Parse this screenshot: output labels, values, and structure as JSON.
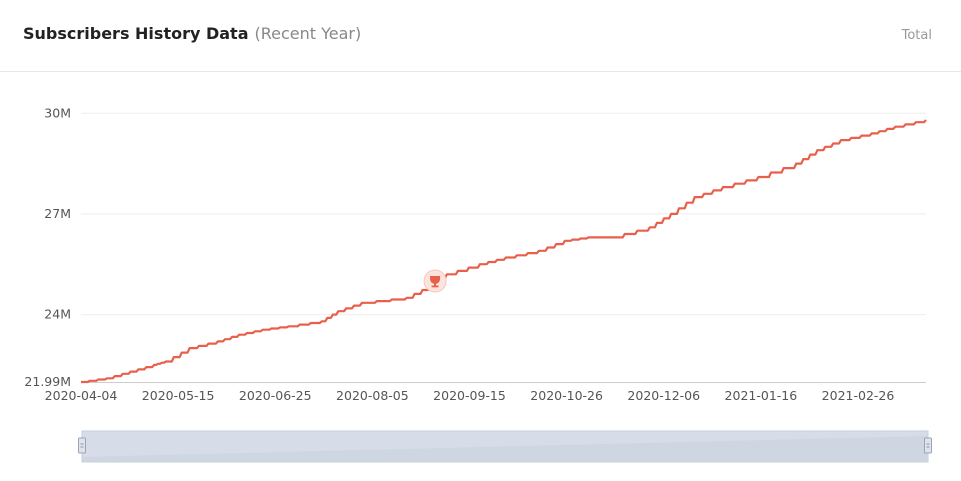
{
  "header": {
    "title": "Subscribers History Data",
    "subtitle": "(Recent Year)",
    "total_label": "Total"
  },
  "colors": {
    "line": "#e8604c",
    "grid": "#eeeeee",
    "axis": "#cccccc",
    "navigator_fill": "#d6dde8"
  },
  "chart_data": {
    "type": "line",
    "title": "Subscribers History Data",
    "x_start": "2020-04-04",
    "x_end": "2021-03-28",
    "xlabel": "",
    "ylabel": "",
    "y_ticks": [
      {
        "label": "21.99M",
        "value": 21.99
      },
      {
        "label": "24M",
        "value": 24
      },
      {
        "label": "27M",
        "value": 27
      },
      {
        "label": "30M",
        "value": 30
      }
    ],
    "x_ticks": [
      "2020-04-04",
      "2020-05-15",
      "2020-06-25",
      "2020-08-05",
      "2020-09-15",
      "2020-10-26",
      "2020-12-06",
      "2021-01-16",
      "2021-02-26"
    ],
    "ylim": [
      21.99,
      31.2
    ],
    "grid": "horizontal",
    "series": [
      {
        "points": [
          [
            "2020-04-04",
            21.99
          ],
          [
            "2020-04-15",
            22.1
          ],
          [
            "2020-04-25",
            22.3
          ],
          [
            "2020-05-05",
            22.5
          ],
          [
            "2020-05-10",
            22.6
          ],
          [
            "2020-05-20",
            23.0
          ],
          [
            "2020-06-01",
            23.2
          ],
          [
            "2020-06-10",
            23.4
          ],
          [
            "2020-06-20",
            23.55
          ],
          [
            "2020-07-01",
            23.65
          ],
          [
            "2020-07-15",
            23.8
          ],
          [
            "2020-07-22",
            24.1
          ],
          [
            "2020-08-01",
            24.35
          ],
          [
            "2020-08-20",
            24.5
          ],
          [
            "2020-08-30",
            24.85
          ],
          [
            "2020-09-06",
            25.2
          ],
          [
            "2020-09-20",
            25.5
          ],
          [
            "2020-10-01",
            25.7
          ],
          [
            "2020-10-15",
            25.9
          ],
          [
            "2020-10-26",
            26.2
          ],
          [
            "2020-11-05",
            26.3
          ],
          [
            "2020-11-15",
            26.3
          ],
          [
            "2020-12-01",
            26.6
          ],
          [
            "2020-12-10",
            27.0
          ],
          [
            "2020-12-20",
            27.5
          ],
          [
            "2021-01-01",
            27.8
          ],
          [
            "2021-01-16",
            28.1
          ],
          [
            "2021-02-01",
            28.5
          ],
          [
            "2021-02-10",
            28.9
          ],
          [
            "2021-02-20",
            29.2
          ],
          [
            "2021-03-05",
            29.4
          ],
          [
            "2021-03-15",
            29.6
          ],
          [
            "2021-03-28",
            29.8
          ]
        ]
      }
    ],
    "annotations": [
      {
        "type": "trophy-marker",
        "date": "2020-09-01",
        "value": 25.0
      }
    ]
  }
}
